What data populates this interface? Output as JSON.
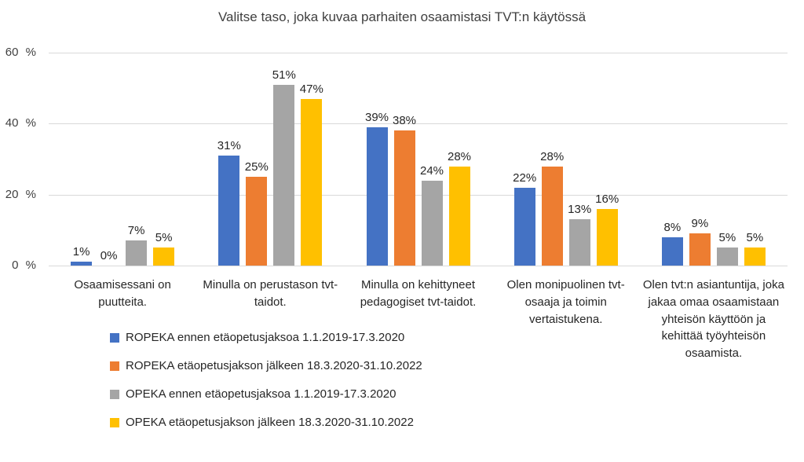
{
  "chart_data": {
    "type": "bar",
    "title": "Valitse taso, joka kuvaa parhaiten osaamistasi TVT:n käytössä",
    "categories": [
      "Osaamisessani on puutteita.",
      "Minulla on perustason tvt-taidot.",
      "Minulla on kehittyneet pedagogiset tvt-taidot.",
      "Olen monipuolinen tvt-osaaja ja toimin vertaistukena.",
      "Olen tvt:n asiantuntija, joka jakaa omaa osaamistaan yhteisön käyttöön ja kehittää työyhteisön osaamista."
    ],
    "series": [
      {
        "name": "ROPEKA ennen etäopetusjaksoa 1.1.2019-17.3.2020",
        "color": "#4472C4",
        "values": [
          1,
          31,
          39,
          22,
          8
        ]
      },
      {
        "name": "ROPEKA etäopetusjakson jälkeen 18.3.2020-31.10.2022",
        "color": "#ED7D31",
        "values": [
          0,
          25,
          38,
          28,
          9
        ]
      },
      {
        "name": "OPEKA ennen etäopetusjaksoa 1.1.2019-17.3.2020",
        "color": "#A5A5A5",
        "values": [
          7,
          51,
          24,
          13,
          5
        ]
      },
      {
        "name": "OPEKA etäopetusjakson jälkeen 18.3.2020-31.10.2022",
        "color": "#FFC000",
        "values": [
          5,
          47,
          28,
          16,
          5
        ]
      }
    ],
    "data_label_suffix": "%",
    "y_axis": {
      "max": 60,
      "ticks": [
        {
          "value": 0,
          "label": "0 %"
        },
        {
          "value": 20,
          "label": "20 %"
        },
        {
          "value": 40,
          "label": "40 %"
        },
        {
          "value": 60,
          "label": "60 %"
        }
      ]
    },
    "grid": true,
    "legend_position": "bottom-left",
    "gridline_color": "#d9d9d9"
  }
}
